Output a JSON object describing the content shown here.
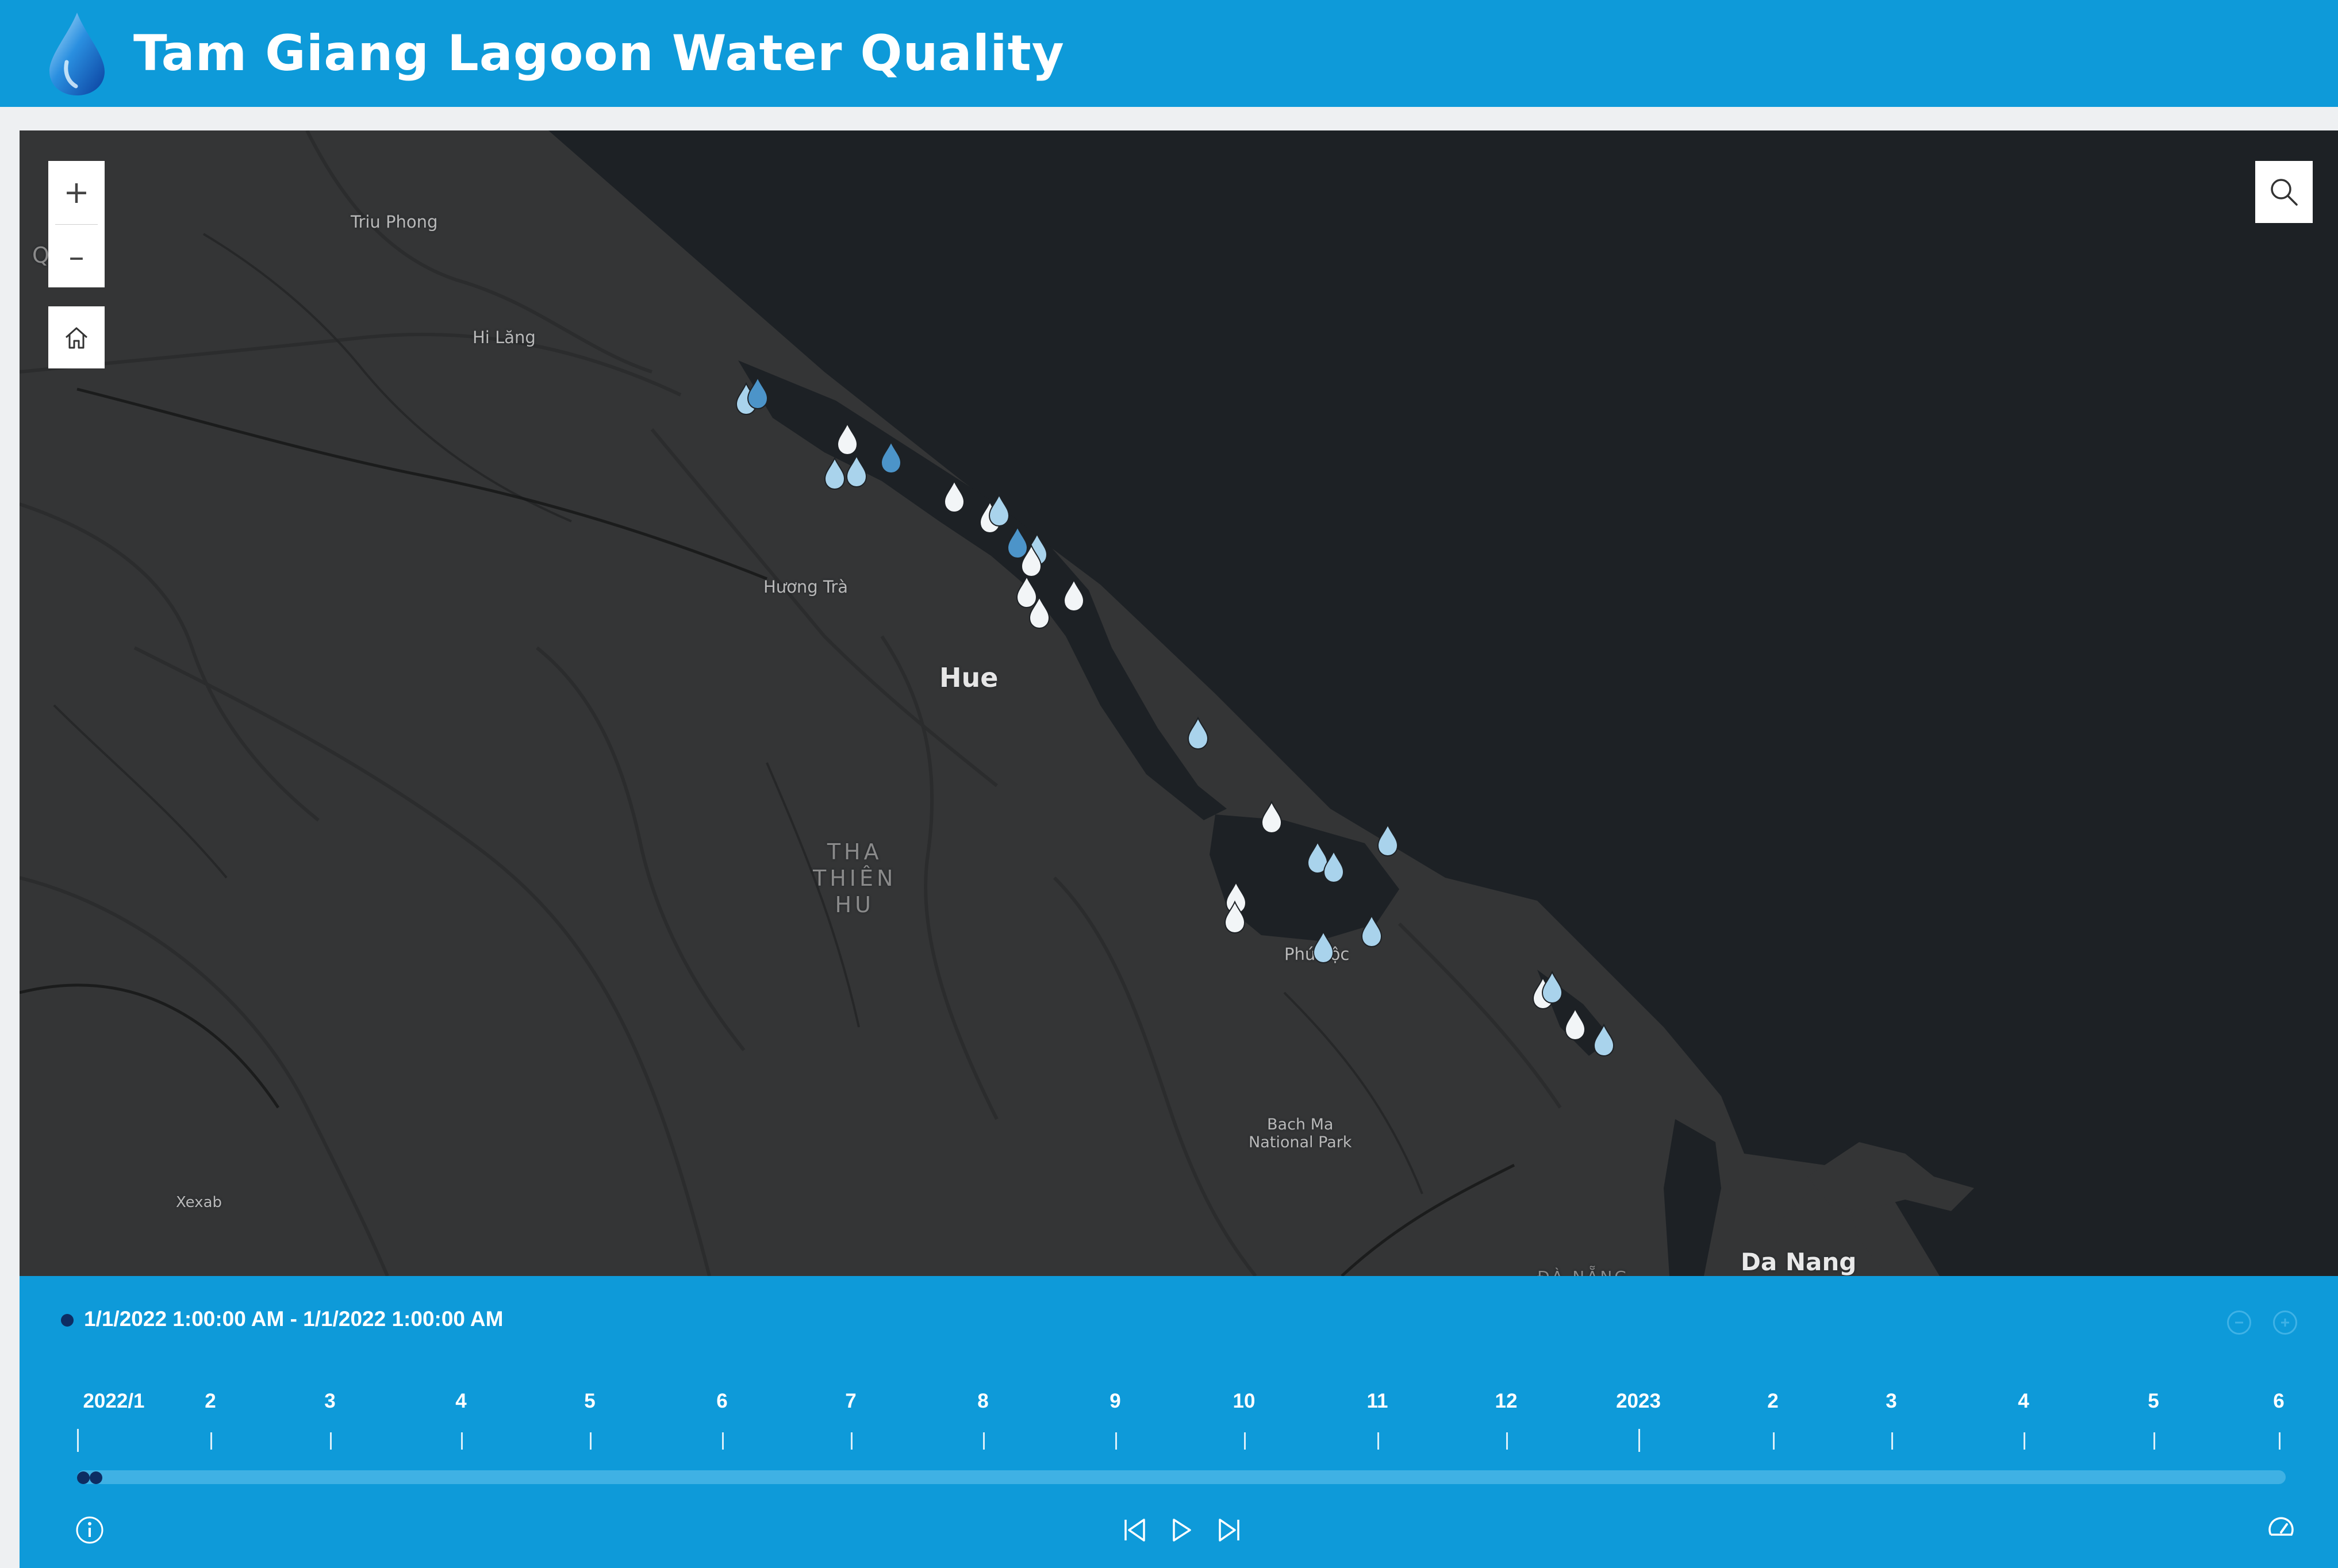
{
  "header": {
    "title": "Tam Giang Lagoon Water Quality",
    "logo_icon": "water-drop-icon",
    "background_color": "#0e9ad9"
  },
  "map": {
    "background_color": "#1d2125",
    "labels": {
      "trieu_phong": "Triu Phong",
      "hi_lang": "Hi Lăng",
      "quang_tri_fragment": "Q    TR",
      "huong_tra": "Hương Trà",
      "hue": "Hue",
      "thua_thien_hue": "THA\nTHIÊN\nHU",
      "phu_loc": "Phú Lộc",
      "bach_ma": "Bach Ma\nNational Park",
      "xexab": "Xexab",
      "da_nang": "Da Nang",
      "da_nang_region": "ĐÀ NẴNG"
    },
    "controls": {
      "zoom_in": "+",
      "zoom_out": "–",
      "home_icon": "home-icon",
      "search_icon": "search-icon"
    },
    "marker_icon": "water-drop-icon",
    "marker_colors": {
      "white": "#f2f5f7",
      "light_blue": "#a9d3ec",
      "mid_blue": "#4c94c9"
    }
  },
  "time_slider": {
    "range_text": "1/1/2022 1:00:00 AM - 1/1/2022 1:00:00 AM",
    "tick_labels": [
      "2022/1",
      "2",
      "3",
      "4",
      "5",
      "6",
      "7",
      "8",
      "9",
      "10",
      "11",
      "12",
      "2023",
      "2",
      "3",
      "4",
      "5",
      "6"
    ],
    "zoom_out_icon": "zoom-out-icon",
    "zoom_in_icon": "zoom-in-icon",
    "info_icon": "info-icon",
    "previous_icon": "skip-previous-icon",
    "play_icon": "play-icon",
    "next_icon": "skip-next-icon",
    "speed_icon": "speed-gauge-icon",
    "background_color": "#0e9ad9",
    "track_color": "#3fb1e4",
    "thumb_color": "#0d2d63"
  }
}
